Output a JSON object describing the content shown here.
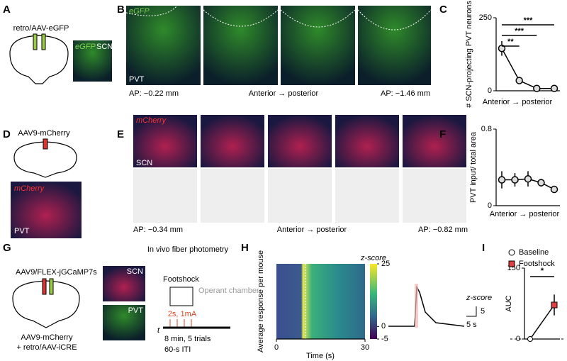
{
  "panels": {
    "A": {
      "label": "A",
      "construct": "retro/AAV-eGFP",
      "stain": "eGFP",
      "region": "SCN"
    },
    "B": {
      "label": "B",
      "stain": "eGFP",
      "region": "PVT",
      "ap_start": "AP: −0.22 mm",
      "axis": "Anterior → posterior",
      "ap_end": "AP: −1.46 mm"
    },
    "C": {
      "label": "C"
    },
    "D": {
      "label": "D",
      "construct": "AAV9-mCherry",
      "stain": "mCherry",
      "region": "PVT"
    },
    "E": {
      "label": "E",
      "stain": "mCherry",
      "region": "SCN",
      "ap_start": "AP: −0.34 mm",
      "axis": "Anterior → posterior",
      "ap_end": "AP: −0.82 mm"
    },
    "F": {
      "label": "F"
    },
    "G": {
      "label": "G",
      "title": "In vivo fiber photometry",
      "construct1": "AAV9/FLEX-jGCaMP7s",
      "construct2": "AAV9-mCherry",
      "construct3": "+ retro/AAV-iCRE",
      "img1": "SCN",
      "img2": "PVT",
      "stim": "Footshock",
      "chamber": "Operant chamber",
      "shock": "2s, 1mA",
      "t": "t",
      "protocol1": "8 min, 5 trials",
      "protocol2": "60-s ITI"
    },
    "H": {
      "label": "H",
      "ylabel": "Average response per mouse",
      "xlabel": "Time (s)",
      "xlim": [
        0,
        30
      ],
      "xticks": [
        0,
        30
      ],
      "cbar_title": "z-score",
      "clim": [
        -5,
        25
      ],
      "cticks": [
        25,
        0,
        -5
      ],
      "scale_title": "z-score",
      "scale_y": "5",
      "scale_x": "5 s"
    },
    "I": {
      "label": "I"
    }
  },
  "charts": [
    {
      "type": "line",
      "ylabel": "# SCN-projecting PVT neurons",
      "xlabel": "Anterior → posterior",
      "ylim": [
        0,
        250
      ],
      "yticks": [
        0,
        250
      ],
      "values": [
        145,
        35,
        8,
        8
      ],
      "errors": [
        25,
        5,
        2,
        2
      ],
      "color": "#000000",
      "sig": [
        "**",
        "***",
        "***"
      ]
    },
    {
      "type": "line",
      "ylabel": "PVT input/ total area",
      "xlabel": "Anterior → posterior",
      "ylim": [
        0,
        0.8
      ],
      "yticks": [
        0,
        0.8
      ],
      "values": [
        0.27,
        0.27,
        0.28,
        0.24,
        0.17
      ],
      "errors": [
        0.09,
        0.07,
        0.08,
        0.04,
        0.03
      ],
      "color": "#000000"
    },
    {
      "type": "paired",
      "ylabel": "AUC",
      "ylim": [
        0,
        150
      ],
      "yticks": [
        0,
        150
      ],
      "legend": [
        "Baseline",
        "Footshock"
      ],
      "values": [
        0,
        72
      ],
      "errors": [
        0,
        22
      ],
      "colors": [
        "#ffffff",
        "#e04040"
      ],
      "sig": [
        "*"
      ]
    }
  ]
}
